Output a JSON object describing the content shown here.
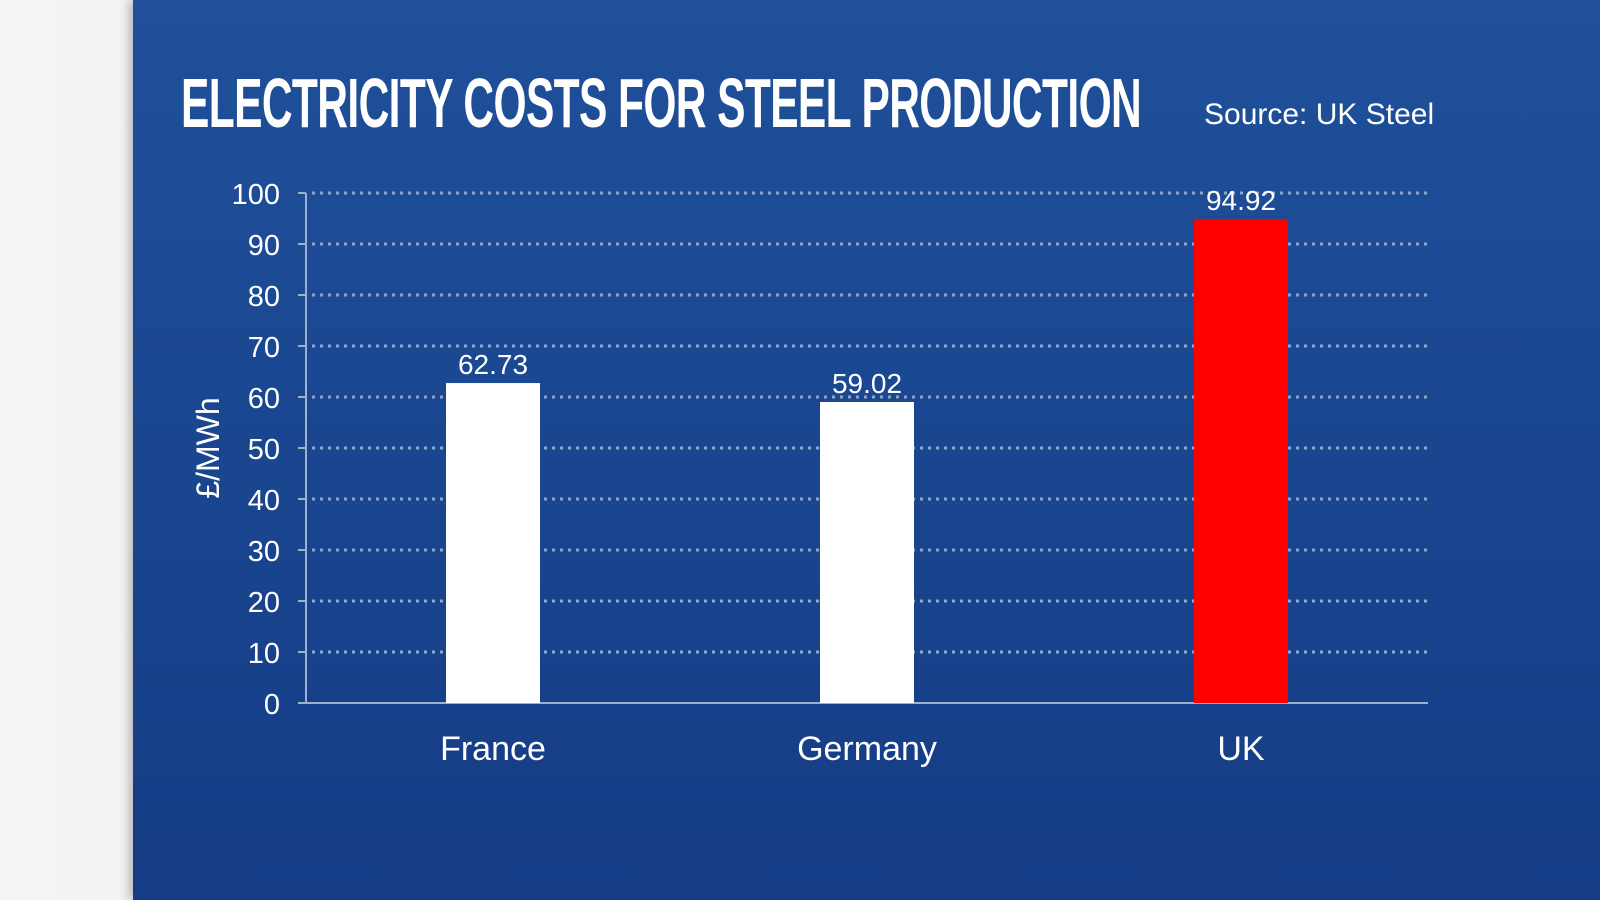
{
  "chart_data": {
    "type": "bar",
    "title": "ELECTRICITY COSTS FOR STEEL PRODUCTION",
    "source": "Source: UK Steel",
    "categories": [
      "France",
      "Germany",
      "UK"
    ],
    "values": [
      62.73,
      59.02,
      94.92
    ],
    "data_labels": [
      "62.73",
      "59.02",
      "94.92"
    ],
    "bar_colors": [
      "#ffffff",
      "#ffffff",
      "#ff0000"
    ],
    "xlabel": "",
    "ylabel": "£/MWh",
    "ylim": [
      0,
      100
    ],
    "yticks": [
      0,
      10,
      20,
      30,
      40,
      50,
      60,
      70,
      80,
      90,
      100
    ],
    "grid": true,
    "background": "#1d4a93"
  }
}
